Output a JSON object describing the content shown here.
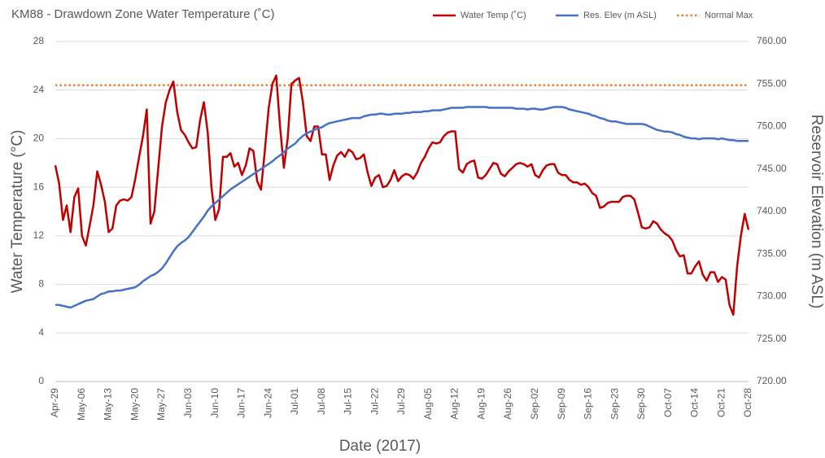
{
  "chart_data": {
    "type": "line",
    "title": "KM88 - Drawdown Zone Water Temperature (˚C)",
    "x_label": "Date (2017)",
    "y_label": "Water Temperature (°C)",
    "y2_label": "Reservoir Elevation (m ASL)",
    "categories": [
      "Apr-29",
      null,
      null,
      null,
      null,
      null,
      null,
      "May-06",
      null,
      null,
      null,
      null,
      null,
      null,
      "May-13",
      null,
      null,
      null,
      null,
      null,
      null,
      "May-20",
      null,
      null,
      null,
      null,
      null,
      null,
      "May-27",
      null,
      null,
      null,
      null,
      null,
      null,
      "Jun-03",
      null,
      null,
      null,
      null,
      null,
      null,
      "Jun-10",
      null,
      null,
      null,
      null,
      null,
      null,
      "Jun-17",
      null,
      null,
      null,
      null,
      null,
      null,
      "Jun-24",
      null,
      null,
      null,
      null,
      null,
      null,
      "Jul-01",
      null,
      null,
      null,
      null,
      null,
      null,
      "Jul-08",
      null,
      null,
      null,
      null,
      null,
      null,
      "Jul-15",
      null,
      null,
      null,
      null,
      null,
      null,
      "Jul-22",
      null,
      null,
      null,
      null,
      null,
      null,
      "Jul-29",
      null,
      null,
      null,
      null,
      null,
      null,
      "Aug-05",
      null,
      null,
      null,
      null,
      null,
      null,
      "Aug-12",
      null,
      null,
      null,
      null,
      null,
      null,
      "Aug-19",
      null,
      null,
      null,
      null,
      null,
      null,
      "Aug-26",
      null,
      null,
      null,
      null,
      null,
      null,
      "Sep-02",
      null,
      null,
      null,
      null,
      null,
      null,
      "Sep-09",
      null,
      null,
      null,
      null,
      null,
      null,
      "Sep-16",
      null,
      null,
      null,
      null,
      null,
      null,
      "Sep-23",
      null,
      null,
      null,
      null,
      null,
      null,
      "Sep-30",
      null,
      null,
      null,
      null,
      null,
      null,
      "Oct-07",
      null,
      null,
      null,
      null,
      null,
      null,
      "Oct-14",
      null,
      null,
      null,
      null,
      null,
      null,
      "Oct-21",
      null,
      null,
      null,
      null,
      null,
      null,
      "Oct-28"
    ],
    "series": [
      {
        "name": "Water Temp (˚C)",
        "color": "#c00000",
        "values": [
          17.8,
          16.3,
          13.3,
          14.5,
          12.3,
          15.2,
          15.9,
          12.0,
          11.2,
          12.8,
          14.5,
          17.3,
          16.2,
          14.8,
          12.3,
          12.6,
          14.5,
          14.9,
          15.0,
          14.9,
          15.2,
          16.7,
          18.5,
          20.2,
          22.4,
          13.0,
          14.0,
          17.5,
          21.0,
          23.0,
          24.0,
          24.7,
          22.2,
          20.7,
          20.3,
          19.7,
          19.2,
          19.3,
          21.5,
          23.0,
          20.5,
          16.0,
          13.3,
          14.2,
          18.5,
          18.5,
          18.8,
          17.7,
          18.0,
          17.0,
          17.8,
          19.2,
          19.0,
          16.5,
          15.8,
          19.0,
          22.5,
          24.5,
          25.2,
          21.0,
          17.6,
          20.0,
          24.5,
          24.8,
          25.0,
          23.0,
          20.2,
          19.8,
          21.0,
          21.0,
          18.7,
          18.7,
          16.6,
          17.8,
          18.6,
          18.9,
          18.5,
          19.1,
          18.9,
          18.3,
          18.4,
          18.7,
          17.2,
          16.1,
          16.8,
          17.0,
          16.0,
          16.1,
          16.6,
          17.4,
          16.5,
          16.9,
          17.1,
          17.0,
          16.7,
          17.2,
          18.0,
          18.5,
          19.2,
          19.7,
          19.6,
          19.7,
          20.2,
          20.5,
          20.6,
          20.6,
          17.5,
          17.2,
          17.9,
          18.1,
          18.2,
          16.8,
          16.7,
          17.0,
          17.5,
          18.0,
          17.9,
          17.1,
          16.9,
          17.3,
          17.6,
          17.9,
          18.0,
          17.9,
          17.7,
          17.9,
          17.0,
          16.8,
          17.4,
          17.8,
          17.9,
          17.9,
          17.2,
          17.0,
          17.0,
          16.6,
          16.4,
          16.4,
          16.2,
          16.3,
          16.0,
          15.5,
          15.3,
          14.3,
          14.4,
          14.7,
          14.8,
          14.8,
          14.8,
          15.2,
          15.3,
          15.3,
          15.0,
          13.9,
          12.7,
          12.6,
          12.7,
          13.2,
          13.0,
          12.5,
          12.2,
          12.0,
          11.6,
          10.8,
          10.3,
          10.4,
          8.9,
          8.9,
          9.5,
          9.9,
          8.8,
          8.3,
          9.0,
          9.0,
          8.2,
          8.6,
          8.4,
          6.3,
          5.5,
          9.5,
          12.0,
          13.8,
          12.5
        ]
      },
      {
        "name": "Res. Elev (m ASL)",
        "color": "#4472c4",
        "axis": "y2",
        "values": [
          729.0,
          729.0,
          728.9,
          728.8,
          728.7,
          728.9,
          729.1,
          729.3,
          729.5,
          729.6,
          729.7,
          730.0,
          730.3,
          730.4,
          730.6,
          730.6,
          730.7,
          730.7,
          730.8,
          730.9,
          731.0,
          731.1,
          731.4,
          731.8,
          732.1,
          732.4,
          732.6,
          732.9,
          733.3,
          733.9,
          734.6,
          735.3,
          735.9,
          736.3,
          736.6,
          737.0,
          737.6,
          738.2,
          738.8,
          739.4,
          740.1,
          740.6,
          741.0,
          741.4,
          741.8,
          742.2,
          742.6,
          742.9,
          743.2,
          743.5,
          743.8,
          744.1,
          744.4,
          744.7,
          745.0,
          745.3,
          745.6,
          745.9,
          746.3,
          746.6,
          747.0,
          747.4,
          747.7,
          748.0,
          748.5,
          748.9,
          749.2,
          749.4,
          749.6,
          749.8,
          749.9,
          750.2,
          750.4,
          750.5,
          750.6,
          750.7,
          750.8,
          750.9,
          751.0,
          751.0,
          751.0,
          751.2,
          751.3,
          751.4,
          751.4,
          751.5,
          751.5,
          751.4,
          751.4,
          751.5,
          751.5,
          751.5,
          751.6,
          751.6,
          751.7,
          751.7,
          751.7,
          751.8,
          751.8,
          751.9,
          751.9,
          751.9,
          752.0,
          752.1,
          752.2,
          752.2,
          752.2,
          752.2,
          752.3,
          752.3,
          752.3,
          752.3,
          752.3,
          752.3,
          752.2,
          752.2,
          752.2,
          752.2,
          752.2,
          752.2,
          752.2,
          752.1,
          752.1,
          752.1,
          752.0,
          752.1,
          752.1,
          752.0,
          752.0,
          752.1,
          752.2,
          752.3,
          752.3,
          752.3,
          752.2,
          752.0,
          751.9,
          751.8,
          751.7,
          751.6,
          751.5,
          751.3,
          751.2,
          751.0,
          750.9,
          750.7,
          750.6,
          750.6,
          750.5,
          750.4,
          750.3,
          750.3,
          750.3,
          750.3,
          750.3,
          750.2,
          750.0,
          749.8,
          749.6,
          749.5,
          749.4,
          749.4,
          749.3,
          749.1,
          749.0,
          748.8,
          748.7,
          748.6,
          748.6,
          748.5,
          748.6,
          748.6,
          748.6,
          748.6,
          748.5,
          748.6,
          748.5,
          748.4,
          748.4,
          748.3,
          748.3,
          748.3,
          748.3
        ]
      }
    ],
    "reference_lines": [
      {
        "name": "Normal Max",
        "value": 24.4,
        "color": "#ed7d31",
        "style": "dotted"
      }
    ],
    "ylim": [
      0,
      28
    ],
    "yticks": [
      0,
      4,
      8,
      12,
      16,
      20,
      24,
      28
    ],
    "y2lim": [
      720,
      760
    ],
    "y2ticks": [
      {
        "value": 720,
        "label": "720.00"
      },
      {
        "value": 725,
        "label": "725.00"
      },
      {
        "value": 730,
        "label": "730.00"
      },
      {
        "value": 735,
        "label": "735.00"
      },
      {
        "value": 740,
        "label": "740.00"
      },
      {
        "value": 745,
        "label": "745.00"
      },
      {
        "value": 750,
        "label": "750.00"
      },
      {
        "value": 755,
        "label": "755.00"
      },
      {
        "value": 760,
        "label": "760.00"
      }
    ],
    "grid": true,
    "legend": "top-right"
  }
}
